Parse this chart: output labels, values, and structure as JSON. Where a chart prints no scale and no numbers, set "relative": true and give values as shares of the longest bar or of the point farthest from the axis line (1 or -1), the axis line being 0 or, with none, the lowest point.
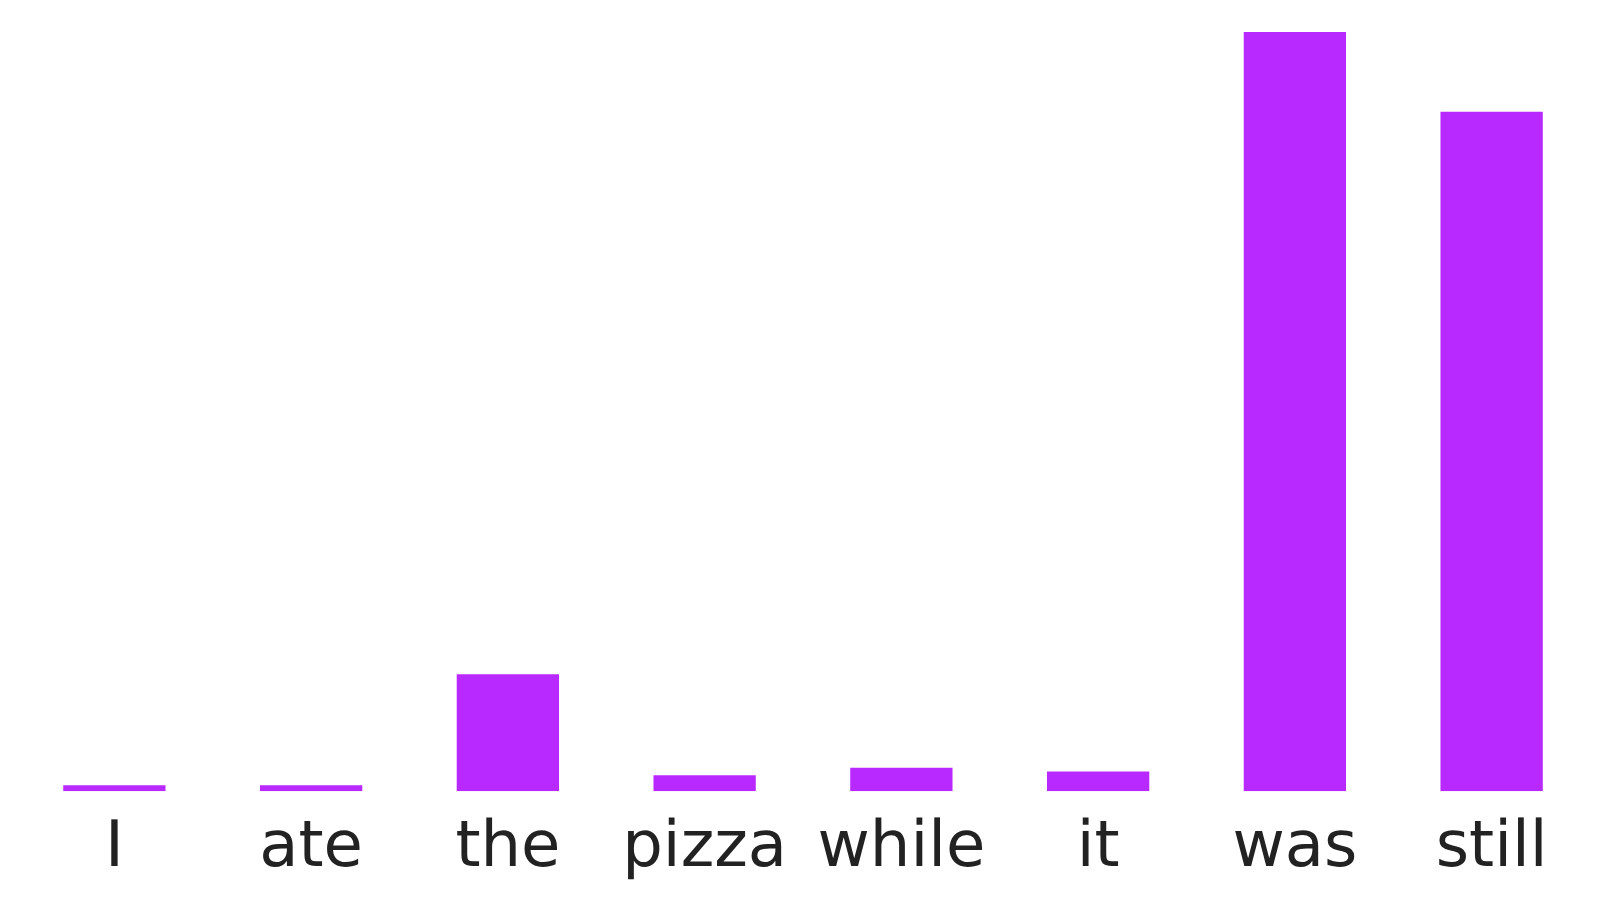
{
  "chart_data": {
    "type": "bar",
    "relative": true,
    "categories": [
      "I",
      "ate",
      "the",
      "pizza",
      "while",
      "it",
      "was",
      "still"
    ],
    "values": [
      0.008,
      0.008,
      0.154,
      0.021,
      0.031,
      0.026,
      1,
      0.895
    ],
    "color": "#b829ff",
    "grid": false,
    "legend": false
  }
}
